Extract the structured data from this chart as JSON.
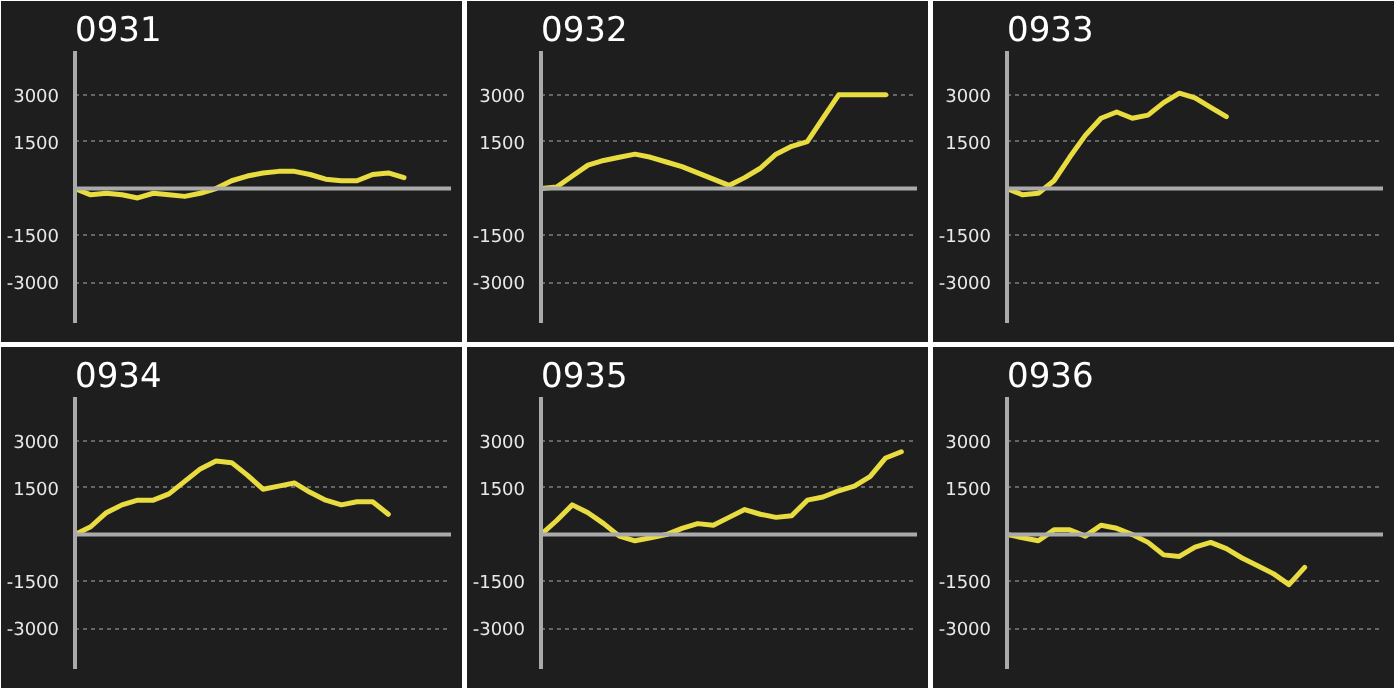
{
  "chart_data": [
    {
      "type": "line",
      "title": "0931",
      "categories": [
        null,
        null,
        null,
        null,
        null,
        null,
        null,
        null,
        null,
        null,
        null,
        null,
        null,
        null,
        null,
        null,
        null,
        null,
        null,
        null,
        null,
        null,
        null,
        null,
        null
      ],
      "series": [
        {
          "color": "#e8dc40",
          "values": [
            0,
            -200,
            -150,
            -200,
            -300,
            -150,
            -200,
            -250,
            -150,
            0,
            250,
            400,
            500,
            550,
            550,
            450,
            300,
            250,
            250,
            450,
            500,
            350,
            null,
            null,
            null
          ]
        }
      ],
      "ylim": [
        -4300,
        4400
      ],
      "yticks": [
        3000,
        1500,
        -1500,
        -3000
      ],
      "grid": "y",
      "tick_labels": "y",
      "ref_lines": [
        {
          "axis": "y",
          "value": 0,
          "color": "#aaaaaa"
        }
      ]
    },
    {
      "type": "line",
      "title": "0932",
      "categories": [
        null,
        null,
        null,
        null,
        null,
        null,
        null,
        null,
        null,
        null,
        null,
        null,
        null,
        null,
        null,
        null,
        null,
        null,
        null,
        null,
        null,
        null,
        null,
        null,
        null
      ],
      "series": [
        {
          "color": "#e8dc40",
          "values": [
            0,
            50,
            400,
            750,
            900,
            1000,
            1100,
            1000,
            850,
            700,
            500,
            300,
            100,
            350,
            650,
            1100,
            1350,
            1500,
            2250,
            3000,
            3000,
            3000,
            3000,
            null,
            null
          ]
        }
      ],
      "ylim": [
        -4300,
        4400
      ],
      "yticks": [
        3000,
        1500,
        -1500,
        -3000
      ],
      "grid": "y",
      "tick_labels": "y",
      "ref_lines": [
        {
          "axis": "y",
          "value": 0,
          "color": "#aaaaaa"
        }
      ]
    },
    {
      "type": "line",
      "title": "0933",
      "categories": [
        null,
        null,
        null,
        null,
        null,
        null,
        null,
        null,
        null,
        null,
        null,
        null,
        null,
        null,
        null,
        null,
        null,
        null,
        null,
        null,
        null,
        null,
        null,
        null,
        null
      ],
      "series": [
        {
          "color": "#e8dc40",
          "values": [
            0,
            -200,
            -150,
            250,
            1000,
            1700,
            2250,
            2450,
            2250,
            2350,
            2750,
            3050,
            2900,
            2600,
            2300,
            null,
            null,
            null,
            null,
            null,
            null,
            null,
            null,
            null,
            null
          ]
        }
      ],
      "ylim": [
        -4300,
        4400
      ],
      "yticks": [
        3000,
        1500,
        -1500,
        -3000
      ],
      "grid": "y",
      "tick_labels": "y",
      "ref_lines": [
        {
          "axis": "y",
          "value": 0,
          "color": "#aaaaaa"
        }
      ]
    },
    {
      "type": "line",
      "title": "0934",
      "categories": [
        null,
        null,
        null,
        null,
        null,
        null,
        null,
        null,
        null,
        null,
        null,
        null,
        null,
        null,
        null,
        null,
        null,
        null,
        null,
        null,
        null,
        null,
        null,
        null,
        null
      ],
      "series": [
        {
          "color": "#e8dc40",
          "values": [
            0,
            250,
            700,
            950,
            1100,
            1100,
            1300,
            1700,
            2100,
            2350,
            2300,
            1900,
            1450,
            1550,
            1650,
            1350,
            1100,
            950,
            1050,
            1050,
            650,
            null,
            null,
            null,
            null
          ]
        }
      ],
      "ylim": [
        -4300,
        4400
      ],
      "yticks": [
        3000,
        1500,
        -1500,
        -3000
      ],
      "grid": "y",
      "tick_labels": "y",
      "ref_lines": [
        {
          "axis": "y",
          "value": 0,
          "color": "#aaaaaa"
        }
      ]
    },
    {
      "type": "line",
      "title": "0935",
      "categories": [
        null,
        null,
        null,
        null,
        null,
        null,
        null,
        null,
        null,
        null,
        null,
        null,
        null,
        null,
        null,
        null,
        null,
        null,
        null,
        null,
        null,
        null,
        null,
        null,
        null
      ],
      "series": [
        {
          "color": "#e8dc40",
          "values": [
            0,
            450,
            950,
            700,
            350,
            -50,
            -200,
            -100,
            0,
            200,
            350,
            300,
            550,
            800,
            650,
            550,
            600,
            1100,
            1200,
            1400,
            1550,
            1850,
            2450,
            2650,
            null
          ]
        }
      ],
      "ylim": [
        -4300,
        4400
      ],
      "yticks": [
        3000,
        1500,
        -1500,
        -3000
      ],
      "grid": "y",
      "tick_labels": "y",
      "ref_lines": [
        {
          "axis": "y",
          "value": 0,
          "color": "#aaaaaa"
        }
      ]
    },
    {
      "type": "line",
      "title": "0936",
      "categories": [
        null,
        null,
        null,
        null,
        null,
        null,
        null,
        null,
        null,
        null,
        null,
        null,
        null,
        null,
        null,
        null,
        null,
        null,
        null,
        null,
        null,
        null,
        null,
        null,
        null
      ],
      "series": [
        {
          "color": "#e8dc40",
          "values": [
            0,
            -100,
            -200,
            150,
            150,
            -50,
            300,
            200,
            0,
            -250,
            -650,
            -700,
            -400,
            -250,
            -450,
            -750,
            -1000,
            -1250,
            -1600,
            -1050,
            null,
            null,
            null,
            null,
            null
          ]
        }
      ],
      "ylim": [
        -4300,
        4400
      ],
      "yticks": [
        3000,
        1500,
        -1500,
        -3000
      ],
      "grid": "y",
      "tick_labels": "y",
      "ref_lines": [
        {
          "axis": "y",
          "value": 0,
          "color": "#aaaaaa"
        }
      ]
    }
  ]
}
